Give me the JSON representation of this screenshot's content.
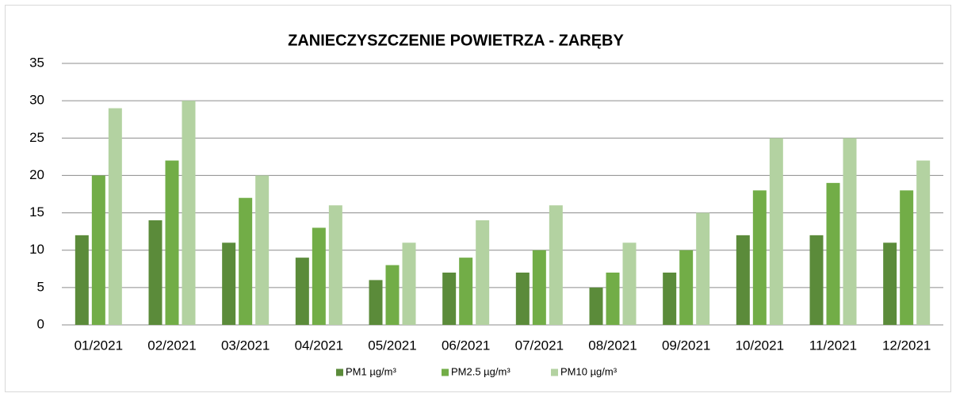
{
  "chart_data": {
    "type": "bar",
    "title": "ZANIECZYSZCZENIE POWIETRZA - ZARĘBY",
    "categories": [
      "01/2021",
      "02/2021",
      "03/2021",
      "04/2021",
      "05/2021",
      "06/2021",
      "07/2021",
      "08/2021",
      "09/2021",
      "10/2021",
      "11/2021",
      "12/2021"
    ],
    "series": [
      {
        "name": "PM1 µg/m³",
        "color": "#5b8b3a",
        "values": [
          12,
          14,
          11,
          9,
          6,
          7,
          7,
          5,
          7,
          12,
          12,
          11
        ]
      },
      {
        "name": "PM2.5 µg/m³",
        "color": "#72ad47",
        "values": [
          20,
          22,
          17,
          13,
          8,
          9,
          10,
          7,
          10,
          18,
          19,
          18
        ]
      },
      {
        "name": "PM10 µg/m³",
        "color": "#b3d2a1",
        "values": [
          29,
          30,
          20,
          16,
          11,
          14,
          16,
          11,
          15,
          25,
          25,
          22
        ]
      }
    ],
    "ylim": [
      0,
      35
    ],
    "yticks": [
      0,
      5,
      10,
      15,
      20,
      25,
      30,
      35
    ],
    "grid": true,
    "legend": "bottom"
  }
}
